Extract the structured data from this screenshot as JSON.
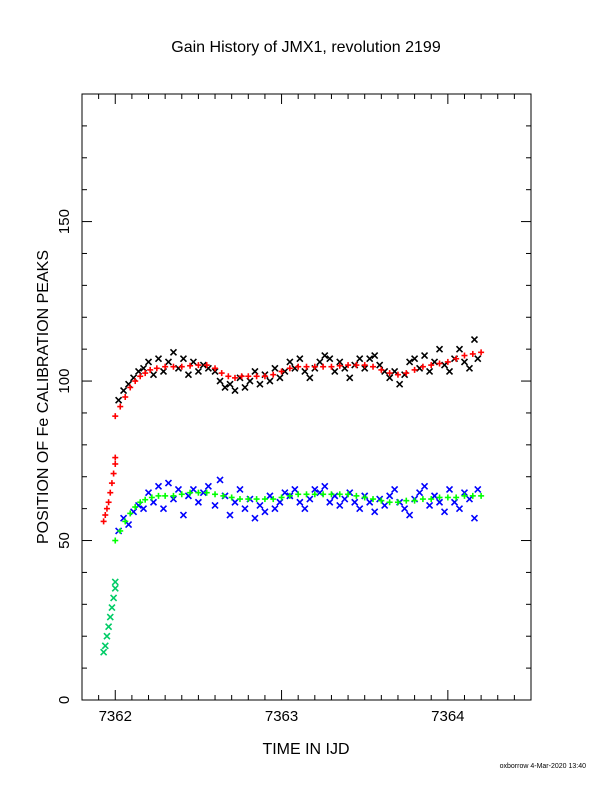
{
  "chart_data": {
    "type": "scatter",
    "title": "Gain History of JMX1, revolution 2199",
    "xlabel": "TIME IN IJD",
    "ylabel": "POSITION OF Fe CALIBRATION PEAKS",
    "xlim": [
      7361.8,
      7364.5
    ],
    "ylim": [
      0,
      190
    ],
    "x_ticks": [
      7362,
      7363,
      7364
    ],
    "y_ticks": [
      0,
      50,
      100,
      150
    ],
    "grid": false,
    "series": [
      {
        "marker": "cross",
        "color": "#000000",
        "points": [
          [
            7362.02,
            94
          ],
          [
            7362.05,
            97
          ],
          [
            7362.08,
            99
          ],
          [
            7362.11,
            101
          ],
          [
            7362.14,
            103
          ],
          [
            7362.17,
            104
          ],
          [
            7362.2,
            106
          ],
          [
            7362.23,
            102
          ],
          [
            7362.26,
            107
          ],
          [
            7362.29,
            103
          ],
          [
            7362.32,
            106
          ],
          [
            7362.35,
            109
          ],
          [
            7362.38,
            104
          ],
          [
            7362.41,
            107
          ],
          [
            7362.44,
            102
          ],
          [
            7362.47,
            106
          ],
          [
            7362.5,
            103
          ],
          [
            7362.53,
            105
          ],
          [
            7362.56,
            104
          ],
          [
            7362.6,
            103
          ],
          [
            7362.63,
            100
          ],
          [
            7362.66,
            98
          ],
          [
            7362.69,
            99
          ],
          [
            7362.72,
            97
          ],
          [
            7362.75,
            101
          ],
          [
            7362.78,
            98
          ],
          [
            7362.81,
            100
          ],
          [
            7362.84,
            103
          ],
          [
            7362.87,
            99
          ],
          [
            7362.9,
            102
          ],
          [
            7362.93,
            100
          ],
          [
            7362.96,
            104
          ],
          [
            7362.99,
            101
          ],
          [
            7363.02,
            103
          ],
          [
            7363.05,
            106
          ],
          [
            7363.08,
            104
          ],
          [
            7363.11,
            107
          ],
          [
            7363.14,
            103
          ],
          [
            7363.17,
            101
          ],
          [
            7363.2,
            104
          ],
          [
            7363.23,
            106
          ],
          [
            7363.26,
            108
          ],
          [
            7363.29,
            107
          ],
          [
            7363.32,
            103
          ],
          [
            7363.35,
            106
          ],
          [
            7363.38,
            104
          ],
          [
            7363.41,
            101
          ],
          [
            7363.44,
            105
          ],
          [
            7363.47,
            107
          ],
          [
            7363.5,
            104
          ],
          [
            7363.53,
            107
          ],
          [
            7363.56,
            108
          ],
          [
            7363.59,
            105
          ],
          [
            7363.62,
            103
          ],
          [
            7363.65,
            101
          ],
          [
            7363.68,
            103
          ],
          [
            7363.71,
            99
          ],
          [
            7363.74,
            102
          ],
          [
            7363.77,
            106
          ],
          [
            7363.8,
            107
          ],
          [
            7363.83,
            104
          ],
          [
            7363.86,
            108
          ],
          [
            7363.89,
            103
          ],
          [
            7363.92,
            106
          ],
          [
            7363.95,
            110
          ],
          [
            7363.98,
            105
          ],
          [
            7364.01,
            103
          ],
          [
            7364.04,
            107
          ],
          [
            7364.07,
            110
          ],
          [
            7364.1,
            106
          ],
          [
            7364.13,
            104
          ],
          [
            7364.16,
            113
          ],
          [
            7364.18,
            107
          ]
        ]
      },
      {
        "marker": "plus",
        "color": "#ff0000",
        "points": [
          [
            7362.0,
            89
          ],
          [
            7362.03,
            92
          ],
          [
            7362.06,
            95
          ],
          [
            7362.09,
            98
          ],
          [
            7362.12,
            100
          ],
          [
            7362.15,
            101.5
          ],
          [
            7362.18,
            102.5
          ],
          [
            7362.21,
            103.5
          ],
          [
            7362.25,
            104
          ],
          [
            7362.3,
            104.5
          ],
          [
            7362.35,
            104.5
          ],
          [
            7362.4,
            104.5
          ],
          [
            7362.45,
            104.8
          ],
          [
            7362.5,
            105
          ],
          [
            7362.55,
            105
          ],
          [
            7362.6,
            104
          ],
          [
            7362.64,
            102.5
          ],
          [
            7362.68,
            101.5
          ],
          [
            7362.72,
            101
          ],
          [
            7362.76,
            101.5
          ],
          [
            7362.8,
            101.5
          ],
          [
            7362.85,
            101.5
          ],
          [
            7362.9,
            101.5
          ],
          [
            7362.95,
            102
          ],
          [
            7363.0,
            103
          ],
          [
            7363.05,
            104
          ],
          [
            7363.1,
            104.5
          ],
          [
            7363.15,
            104.5
          ],
          [
            7363.2,
            104.5
          ],
          [
            7363.25,
            104.5
          ],
          [
            7363.3,
            104.5
          ],
          [
            7363.35,
            104.8
          ],
          [
            7363.4,
            105
          ],
          [
            7363.45,
            105
          ],
          [
            7363.5,
            105
          ],
          [
            7363.55,
            104.5
          ],
          [
            7363.6,
            103.5
          ],
          [
            7363.65,
            102.5
          ],
          [
            7363.7,
            102
          ],
          [
            7363.75,
            102.5
          ],
          [
            7363.8,
            103.5
          ],
          [
            7363.85,
            104.5
          ],
          [
            7363.9,
            105
          ],
          [
            7363.95,
            105.5
          ],
          [
            7364.0,
            106
          ],
          [
            7364.05,
            107
          ],
          [
            7364.1,
            108
          ],
          [
            7364.15,
            108.5
          ],
          [
            7364.2,
            109
          ]
        ]
      },
      {
        "marker": "plus",
        "color": "#ff0000",
        "points": [
          [
            7361.93,
            56
          ],
          [
            7361.94,
            58
          ],
          [
            7361.95,
            60
          ],
          [
            7361.96,
            62
          ],
          [
            7361.97,
            65
          ],
          [
            7361.98,
            68
          ],
          [
            7361.99,
            71
          ],
          [
            7362.0,
            74
          ],
          [
            7362.0,
            76
          ]
        ]
      },
      {
        "marker": "cross",
        "color": "#0000ff",
        "points": [
          [
            7362.02,
            53
          ],
          [
            7362.05,
            57
          ],
          [
            7362.08,
            55
          ],
          [
            7362.11,
            59
          ],
          [
            7362.14,
            61
          ],
          [
            7362.17,
            60
          ],
          [
            7362.2,
            65
          ],
          [
            7362.23,
            62
          ],
          [
            7362.26,
            67
          ],
          [
            7362.29,
            60
          ],
          [
            7362.32,
            68
          ],
          [
            7362.35,
            63
          ],
          [
            7362.38,
            66
          ],
          [
            7362.41,
            58
          ],
          [
            7362.44,
            64
          ],
          [
            7362.47,
            66
          ],
          [
            7362.5,
            62
          ],
          [
            7362.53,
            65
          ],
          [
            7362.56,
            67
          ],
          [
            7362.6,
            61
          ],
          [
            7362.63,
            69
          ],
          [
            7362.66,
            64
          ],
          [
            7362.69,
            58
          ],
          [
            7362.72,
            62
          ],
          [
            7362.75,
            66
          ],
          [
            7362.78,
            60
          ],
          [
            7362.81,
            63
          ],
          [
            7362.84,
            57
          ],
          [
            7362.87,
            61
          ],
          [
            7362.9,
            59
          ],
          [
            7362.93,
            64
          ],
          [
            7362.96,
            60
          ],
          [
            7362.99,
            62
          ],
          [
            7363.02,
            65
          ],
          [
            7363.05,
            64
          ],
          [
            7363.08,
            66
          ],
          [
            7363.11,
            62
          ],
          [
            7363.14,
            60
          ],
          [
            7363.17,
            63
          ],
          [
            7363.2,
            66
          ],
          [
            7363.23,
            65
          ],
          [
            7363.26,
            67
          ],
          [
            7363.29,
            62
          ],
          [
            7363.32,
            64
          ],
          [
            7363.35,
            61
          ],
          [
            7363.38,
            63
          ],
          [
            7363.41,
            65
          ],
          [
            7363.44,
            62
          ],
          [
            7363.47,
            60
          ],
          [
            7363.5,
            64
          ],
          [
            7363.53,
            62
          ],
          [
            7363.56,
            59
          ],
          [
            7363.59,
            63
          ],
          [
            7363.62,
            61
          ],
          [
            7363.65,
            64
          ],
          [
            7363.68,
            66
          ],
          [
            7363.71,
            62
          ],
          [
            7363.74,
            60
          ],
          [
            7363.77,
            58
          ],
          [
            7363.8,
            63
          ],
          [
            7363.83,
            65
          ],
          [
            7363.86,
            67
          ],
          [
            7363.89,
            61
          ],
          [
            7363.92,
            64
          ],
          [
            7363.95,
            62
          ],
          [
            7363.98,
            59
          ],
          [
            7364.01,
            66
          ],
          [
            7364.04,
            62
          ],
          [
            7364.07,
            60
          ],
          [
            7364.1,
            65
          ],
          [
            7364.13,
            63
          ],
          [
            7364.16,
            57
          ],
          [
            7364.18,
            66
          ]
        ]
      },
      {
        "marker": "plus",
        "color": "#00ff00",
        "points": [
          [
            7362.0,
            50
          ],
          [
            7362.03,
            53
          ],
          [
            7362.06,
            56
          ],
          [
            7362.09,
            58.5
          ],
          [
            7362.12,
            60.5
          ],
          [
            7362.15,
            62
          ],
          [
            7362.18,
            62.8
          ],
          [
            7362.22,
            63.5
          ],
          [
            7362.26,
            64
          ],
          [
            7362.3,
            64
          ],
          [
            7362.35,
            64
          ],
          [
            7362.4,
            64.5
          ],
          [
            7362.45,
            65
          ],
          [
            7362.5,
            65
          ],
          [
            7362.55,
            65
          ],
          [
            7362.6,
            64.5
          ],
          [
            7362.65,
            64
          ],
          [
            7362.7,
            63.5
          ],
          [
            7362.75,
            63
          ],
          [
            7362.8,
            63
          ],
          [
            7362.85,
            63
          ],
          [
            7362.9,
            63
          ],
          [
            7362.95,
            63
          ],
          [
            7363.0,
            63.5
          ],
          [
            7363.05,
            64
          ],
          [
            7363.1,
            64.5
          ],
          [
            7363.15,
            64.5
          ],
          [
            7363.2,
            64.5
          ],
          [
            7363.25,
            64.5
          ],
          [
            7363.3,
            64.5
          ],
          [
            7363.35,
            64.5
          ],
          [
            7363.4,
            64.5
          ],
          [
            7363.45,
            64
          ],
          [
            7363.5,
            63.5
          ],
          [
            7363.55,
            63
          ],
          [
            7363.6,
            62.5
          ],
          [
            7363.65,
            62
          ],
          [
            7363.7,
            62
          ],
          [
            7363.75,
            62.5
          ],
          [
            7363.8,
            62.5
          ],
          [
            7363.85,
            63
          ],
          [
            7363.9,
            63
          ],
          [
            7363.95,
            63.5
          ],
          [
            7364.0,
            63.5
          ],
          [
            7364.05,
            63.5
          ],
          [
            7364.1,
            64
          ],
          [
            7364.15,
            64
          ],
          [
            7364.2,
            64
          ]
        ]
      },
      {
        "marker": "cross",
        "color": "#00cc66",
        "points": [
          [
            7361.93,
            15
          ],
          [
            7361.94,
            17
          ],
          [
            7361.95,
            20
          ],
          [
            7361.96,
            23
          ],
          [
            7361.97,
            26
          ],
          [
            7361.98,
            29
          ],
          [
            7361.99,
            32
          ],
          [
            7362.0,
            35
          ],
          [
            7362.0,
            37
          ]
        ]
      }
    ]
  },
  "footer": {
    "credit": "oxborrow  4-Mar-2020 13:40"
  }
}
